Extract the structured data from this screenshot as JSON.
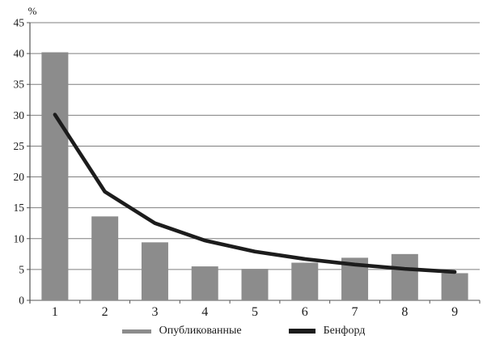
{
  "chart": {
    "y_axis_unit_label": "%",
    "legend": {
      "published_label": "Опубликованные",
      "benford_label": "Бенфорд"
    }
  },
  "chart_data": {
    "type": "bar",
    "title": "",
    "xlabel": "",
    "ylabel": "%",
    "categories": [
      "1",
      "2",
      "3",
      "4",
      "5",
      "6",
      "7",
      "8",
      "9"
    ],
    "series": [
      {
        "name": "Опубликованные",
        "type": "bar",
        "color": "#8c8c8c",
        "values": [
          40.2,
          13.6,
          9.4,
          5.5,
          5.1,
          6.1,
          6.9,
          7.5,
          4.4
        ]
      },
      {
        "name": "Бенфорд",
        "type": "line",
        "color": "#1c1c1c",
        "values": [
          30.1,
          17.6,
          12.5,
          9.7,
          7.9,
          6.7,
          5.8,
          5.1,
          4.6
        ]
      }
    ],
    "ylim": [
      0,
      45
    ],
    "yticks": [
      0,
      5,
      10,
      15,
      20,
      25,
      30,
      35,
      40,
      45
    ],
    "grid": true,
    "gridline_color": "#7f7f7f",
    "axis_color": "#555555",
    "legend_position": "bottom"
  }
}
